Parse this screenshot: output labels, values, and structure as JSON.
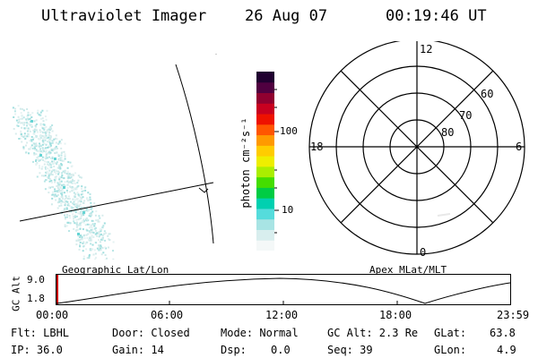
{
  "header": {
    "instrument": "Ultraviolet Imager",
    "date": "26 Aug 07",
    "time": "00:19:46 UT"
  },
  "colorbar": {
    "unit_label": "photon cm⁻²s⁻¹",
    "ticks": [
      "100",
      "10"
    ],
    "colors": [
      "#f4f8f8",
      "#d8eeee",
      "#a8e4e4",
      "#55dcdc",
      "#00d0b0",
      "#00cc44",
      "#44dd00",
      "#aaee00",
      "#eeee00",
      "#ffcc00",
      "#ff9900",
      "#ff5500",
      "#ee1100",
      "#c80020",
      "#900030",
      "#500040",
      "#200030"
    ]
  },
  "polar_plot": {
    "labels": {
      "top": "12",
      "bottom": "0",
      "left": "18",
      "right": "6"
    },
    "lat_labels": [
      "60",
      "70",
      "80"
    ]
  },
  "altitude_plot": {
    "ylabel": "GC Alt",
    "yticks": [
      "9.0",
      "1.8"
    ],
    "left_title": "Geographic Lat/Lon",
    "right_title": "Apex MLat/MLT",
    "xticks": [
      "00:00",
      "06:00",
      "12:00",
      "18:00",
      "23:59"
    ]
  },
  "status": {
    "row1": [
      {
        "label": "Flt: LBHL"
      },
      {
        "label": "Door: Closed"
      },
      {
        "label": "Mode: Normal"
      },
      {
        "label": "GC Alt: 2.3 Re"
      },
      {
        "label": "GLat:",
        "value": "63.8"
      }
    ],
    "row2": [
      {
        "label": "IP: 36.0"
      },
      {
        "label": "Gain: 14"
      },
      {
        "label": "Dsp:",
        "value": "0.0"
      },
      {
        "label": "Seq: 39"
      },
      {
        "label": "GLon:",
        "value": "4.9"
      }
    ]
  }
}
